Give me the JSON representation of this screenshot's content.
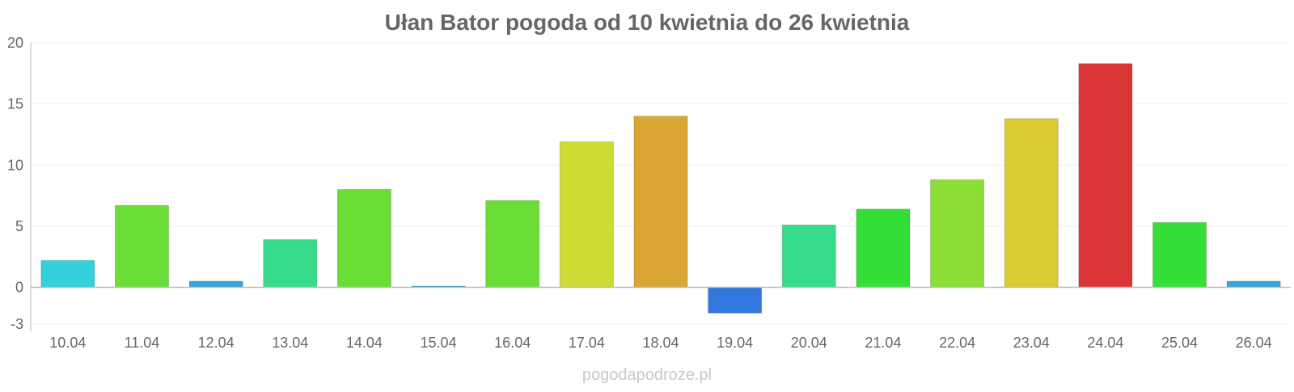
{
  "chart_data": {
    "type": "bar",
    "title": "Ułan Bator pogoda od 10 kwietnia do 26 kwietnia",
    "xlabel": "",
    "ylabel": "",
    "categories": [
      "10.04",
      "11.04",
      "12.04",
      "13.04",
      "14.04",
      "15.04",
      "16.04",
      "17.04",
      "18.04",
      "19.04",
      "20.04",
      "21.04",
      "22.04",
      "23.04",
      "24.04",
      "25.04",
      "26.04"
    ],
    "values": [
      2.2,
      6.7,
      0.5,
      3.9,
      8.0,
      0.1,
      7.1,
      11.9,
      14.0,
      -2.1,
      5.1,
      6.4,
      8.8,
      13.8,
      18.3,
      5.3,
      0.5
    ],
    "colors": [
      "#34d0dc",
      "#6ade36",
      "#35a4d8",
      "#36dc8a",
      "#6ade36",
      "#35a4d8",
      "#6ade36",
      "#cfdc34",
      "#dba734",
      "#3277de",
      "#36dc8a",
      "#34de36",
      "#8ade36",
      "#dbcb34",
      "#db3434",
      "#34de36",
      "#35a4d8"
    ],
    "yticks": [
      20,
      15,
      10,
      5,
      0,
      -3
    ],
    "ylim": [
      -3.6,
      20
    ],
    "grid": true,
    "legend": "none"
  },
  "footer": {
    "credit": "pogodapodroze.pl"
  }
}
